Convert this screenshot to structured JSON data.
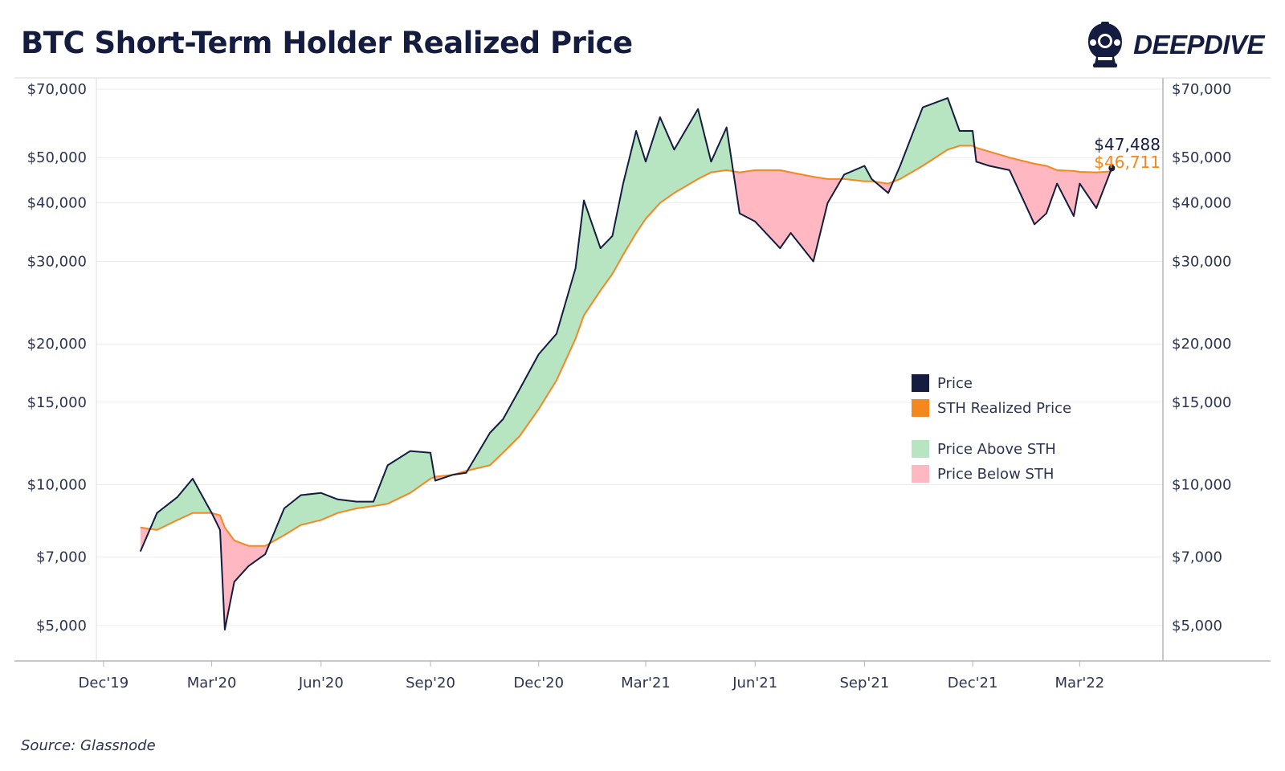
{
  "title": "BTC Short-Term Holder Realized Price",
  "brand": {
    "name": "DEEPDIVE",
    "icon": "diving-helmet-icon"
  },
  "source": "Source: Glassnode",
  "colors": {
    "price": "#141c3f",
    "sth": "#f5871f",
    "above": "#b7e4c1",
    "below": "#ffb8c2",
    "grid": "#ebebeb",
    "axis_text": "#2c3450"
  },
  "chart_data": {
    "type": "line",
    "y_scale": "log",
    "ylim": [
      4200,
      74000
    ],
    "y_ticks": [
      {
        "value": 5000,
        "label": "$5,000"
      },
      {
        "value": 7000,
        "label": "$7,000"
      },
      {
        "value": 10000,
        "label": "$10,000"
      },
      {
        "value": 15000,
        "label": "$15,000"
      },
      {
        "value": 20000,
        "label": "$20,000"
      },
      {
        "value": 30000,
        "label": "$30,000"
      },
      {
        "value": 40000,
        "label": "$40,000"
      },
      {
        "value": 50000,
        "label": "$50,000"
      },
      {
        "value": 70000,
        "label": "$70,000"
      }
    ],
    "xlim": [
      "2019-11-25",
      "2022-05-10"
    ],
    "x_ticks": [
      {
        "date": "2019-12-01",
        "label": "Dec'19"
      },
      {
        "date": "2020-03-01",
        "label": "Mar'20"
      },
      {
        "date": "2020-06-01",
        "label": "Jun'20"
      },
      {
        "date": "2020-09-01",
        "label": "Sep'20"
      },
      {
        "date": "2020-12-01",
        "label": "Dec'20"
      },
      {
        "date": "2021-03-01",
        "label": "Mar'21"
      },
      {
        "date": "2021-06-01",
        "label": "Jun'21"
      },
      {
        "date": "2021-09-01",
        "label": "Sep'21"
      },
      {
        "date": "2021-12-01",
        "label": "Dec'21"
      },
      {
        "date": "2022-03-01",
        "label": "Mar'22"
      }
    ],
    "x": [
      "2020-01-01",
      "2020-01-15",
      "2020-02-01",
      "2020-02-14",
      "2020-03-01",
      "2020-03-08",
      "2020-03-12",
      "2020-03-20",
      "2020-04-01",
      "2020-04-15",
      "2020-05-01",
      "2020-05-15",
      "2020-06-01",
      "2020-06-15",
      "2020-07-01",
      "2020-07-15",
      "2020-07-27",
      "2020-08-15",
      "2020-09-01",
      "2020-09-05",
      "2020-09-20",
      "2020-10-01",
      "2020-10-21",
      "2020-11-01",
      "2020-11-15",
      "2020-12-01",
      "2020-12-16",
      "2021-01-01",
      "2021-01-08",
      "2021-01-22",
      "2021-02-01",
      "2021-02-10",
      "2021-02-21",
      "2021-03-01",
      "2021-03-13",
      "2021-03-25",
      "2021-04-14",
      "2021-04-25",
      "2021-05-08",
      "2021-05-19",
      "2021-06-01",
      "2021-06-22",
      "2021-07-01",
      "2021-07-20",
      "2021-08-01",
      "2021-08-15",
      "2021-09-01",
      "2021-09-07",
      "2021-09-21",
      "2021-10-01",
      "2021-10-20",
      "2021-11-10",
      "2021-11-20",
      "2021-12-01",
      "2021-12-04",
      "2021-12-15",
      "2022-01-01",
      "2022-01-22",
      "2022-02-01",
      "2022-02-10",
      "2022-02-24",
      "2022-03-01",
      "2022-03-15",
      "2022-03-28"
    ],
    "series": [
      {
        "name": "Price",
        "values": [
          7200,
          8700,
          9400,
          10300,
          8700,
          8000,
          4900,
          6200,
          6700,
          7100,
          8900,
          9500,
          9600,
          9300,
          9200,
          9200,
          11000,
          11800,
          11700,
          10200,
          10500,
          10600,
          12900,
          13800,
          16000,
          19000,
          21000,
          29000,
          40500,
          32000,
          34000,
          44000,
          57000,
          49000,
          61000,
          52000,
          63500,
          49000,
          58000,
          38000,
          36500,
          32000,
          34500,
          30000,
          40000,
          46000,
          48000,
          45000,
          42000,
          48000,
          64000,
          67000,
          57000,
          57000,
          49000,
          48000,
          47000,
          36000,
          38000,
          44000,
          37500,
          44000,
          39000,
          47488
        ]
      },
      {
        "name": "STH Realized Price",
        "values": [
          8100,
          8000,
          8400,
          8700,
          8700,
          8600,
          8100,
          7600,
          7400,
          7400,
          7800,
          8200,
          8400,
          8700,
          8900,
          9000,
          9100,
          9600,
          10300,
          10400,
          10500,
          10700,
          11000,
          11700,
          12700,
          14500,
          16700,
          20500,
          23000,
          26000,
          28200,
          31000,
          34500,
          37000,
          40000,
          42000,
          45000,
          46500,
          47000,
          46500,
          47000,
          47000,
          46500,
          45500,
          45000,
          45000,
          44500,
          44500,
          44000,
          45000,
          48000,
          52000,
          53000,
          53000,
          52500,
          51500,
          50000,
          48500,
          48000,
          47000,
          46800,
          46600,
          46500,
          46711
        ]
      }
    ],
    "annotations": [
      {
        "series": "Price",
        "label": "$47,488"
      },
      {
        "series": "STH Realized Price",
        "label": "$46,711"
      }
    ],
    "legend": {
      "placement": "right-middle",
      "items": [
        {
          "label": "Price",
          "color": "#141c3f"
        },
        {
          "label": "STH Realized Price",
          "color": "#f5871f"
        },
        {
          "label": "Price Above STH",
          "color": "#b7e4c1"
        },
        {
          "label": "Price Below STH",
          "color": "#ffb8c2"
        }
      ]
    },
    "grid": true
  }
}
